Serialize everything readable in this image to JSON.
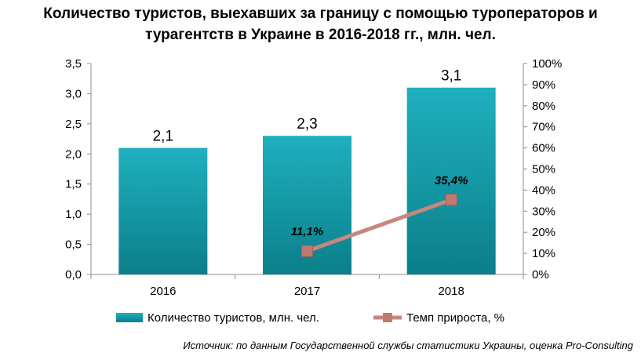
{
  "title_line1": "Количество туристов, выехавших за границу с помощью туроператоров и",
  "title_line2": "турагентств в Украине в 2016-2018 гг., млн. чел.",
  "source": "Источник: по данным Государственной службы статистики Украины, оценка Pro-Consulting",
  "colors": {
    "bar_top": "#1fb0bf",
    "bar_bottom": "#0b7f8a",
    "line": "#c48880",
    "marker": "#c07a70"
  },
  "chart_data": {
    "type": "bar",
    "categories": [
      "2016",
      "2017",
      "2018"
    ],
    "series": [
      {
        "name": "Количество туристов, млн. чел.",
        "type": "bar",
        "axis": "left",
        "values": [
          2.1,
          2.3,
          3.1
        ],
        "labels": [
          "2,1",
          "2,3",
          "3,1"
        ]
      },
      {
        "name": "Темп прироста, %",
        "type": "line",
        "axis": "right",
        "values": [
          null,
          11.1,
          35.4
        ],
        "labels": [
          "",
          "11,1%",
          "35,4%"
        ]
      }
    ],
    "y_left": {
      "ylim": [
        0,
        3.5
      ],
      "ticks": [
        "0,0",
        "0,5",
        "1,0",
        "1,5",
        "2,0",
        "2,5",
        "3,0",
        "3,5"
      ]
    },
    "y_right": {
      "ylim": [
        0,
        100
      ],
      "ticks": [
        "0%",
        "10%",
        "20%",
        "30%",
        "40%",
        "50%",
        "60%",
        "70%",
        "80%",
        "90%",
        "100%"
      ]
    },
    "grid": false,
    "legend_position": "bottom"
  }
}
